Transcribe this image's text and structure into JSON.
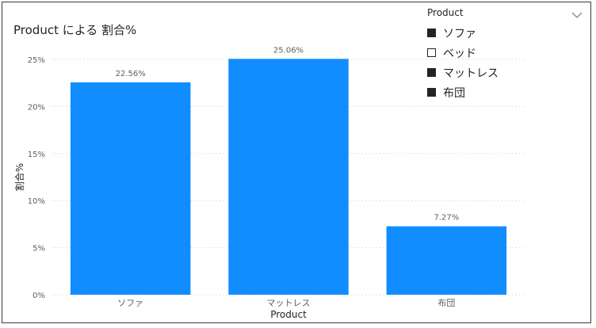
{
  "chart_title": "Product による 割合%",
  "chart_data": {
    "type": "bar",
    "title": "Product による 割合%",
    "xlabel": "Product",
    "ylabel": "割合%",
    "categories": [
      "ソファ",
      "マットレス",
      "布団"
    ],
    "values": [
      22.56,
      25.06,
      7.27
    ],
    "data_labels": [
      "22.56%",
      "25.06%",
      "7.27%"
    ],
    "ylim": [
      0,
      25
    ],
    "yticks": [
      0,
      5,
      10,
      15,
      20,
      25
    ],
    "ytick_labels": [
      "0%",
      "5%",
      "10%",
      "15%",
      "20%",
      "25%"
    ],
    "grid": true,
    "bar_color": "#118DFF",
    "legend_position": "top-right"
  },
  "legend": {
    "title": "Product",
    "items": [
      {
        "label": "ソファ",
        "selected": true
      },
      {
        "label": "ベッド",
        "selected": false
      },
      {
        "label": "マットレス",
        "selected": true
      },
      {
        "label": "布団",
        "selected": true
      }
    ]
  },
  "icons": {
    "expand": "chevron-down-icon"
  }
}
